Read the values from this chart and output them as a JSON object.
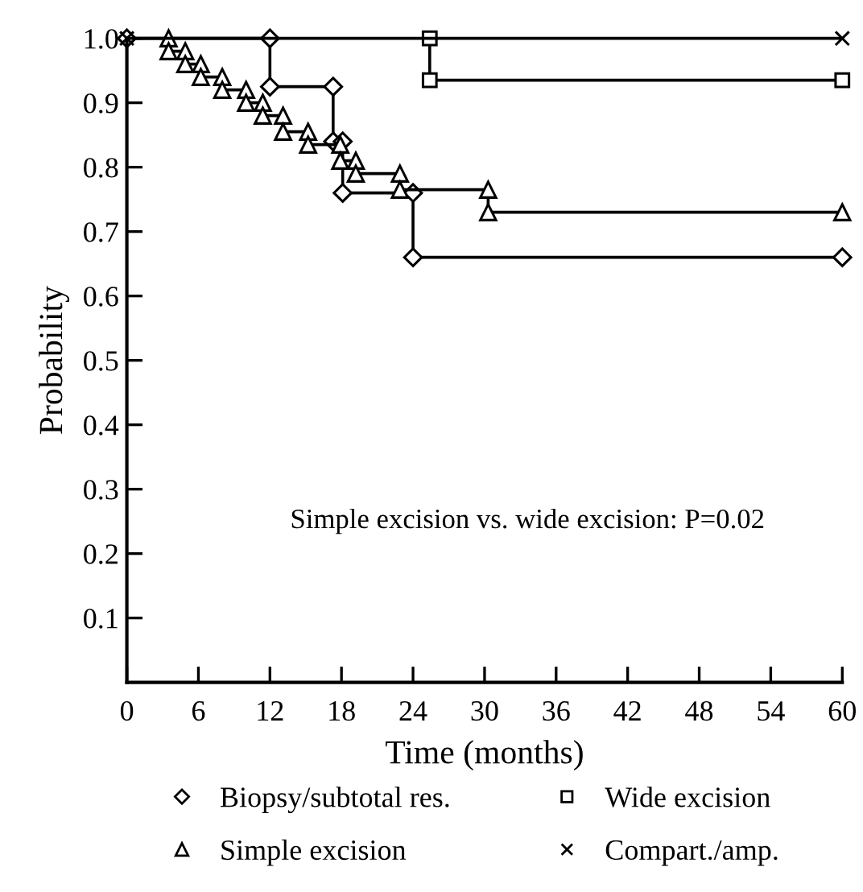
{
  "chart_data": {
    "type": "step",
    "xlabel": "Time (months)",
    "ylabel": "Probability",
    "annotations": [
      "Simple excision vs. wide excision: P=0.02"
    ],
    "xlim": [
      0,
      60
    ],
    "ylim": [
      0,
      1.0
    ],
    "xticks": [
      0,
      6,
      12,
      18,
      24,
      30,
      36,
      42,
      48,
      54,
      60
    ],
    "yticks": [
      {
        "value": 0.1,
        "label": "0.1"
      },
      {
        "value": 0.2,
        "label": "0.2"
      },
      {
        "value": 0.3,
        "label": "0.3"
      },
      {
        "value": 0.4,
        "label": "0.4"
      },
      {
        "value": 0.5,
        "label": "0.5"
      },
      {
        "value": 0.6,
        "label": "0.6"
      },
      {
        "value": 0.7,
        "label": "0.7"
      },
      {
        "value": 0.8,
        "label": "0.8"
      },
      {
        "value": 0.9,
        "label": "0.9"
      },
      {
        "value": 1.0,
        "label": "1.0"
      }
    ],
    "grid": false,
    "legend": "bottom",
    "line_style": "solid",
    "series": [
      {
        "name": "Biopsy/subtotal res.",
        "color": "#000000",
        "marker": "diamond",
        "x": [
          0,
          12,
          12,
          17.3,
          17.3,
          18.1,
          18.1,
          24,
          24,
          60
        ],
        "values": [
          1.0,
          1.0,
          0.925,
          0.925,
          0.84,
          0.84,
          0.76,
          0.76,
          0.66,
          0.66
        ]
      },
      {
        "name": "Simple excision",
        "color": "#000000",
        "marker": "triangle",
        "x": [
          3.5,
          3.5,
          4.9,
          4.9,
          6.2,
          6.2,
          8.0,
          8.0,
          10.0,
          10.0,
          11.4,
          11.4,
          13.1,
          13.1,
          15.2,
          15.2,
          17.9,
          17.9,
          19.2,
          19.2,
          22.9,
          22.9,
          30.3,
          30.3,
          60
        ],
        "values": [
          1.0,
          0.98,
          0.98,
          0.96,
          0.96,
          0.94,
          0.94,
          0.92,
          0.92,
          0.9,
          0.9,
          0.88,
          0.88,
          0.855,
          0.855,
          0.835,
          0.835,
          0.81,
          0.81,
          0.79,
          0.79,
          0.765,
          0.765,
          0.73,
          0.73
        ]
      },
      {
        "name": "Wide excision",
        "color": "#000000",
        "marker": "square",
        "x": [
          25.4,
          25.4,
          60
        ],
        "values": [
          1.0,
          0.935,
          0.935
        ]
      },
      {
        "name": "Compart./amp.",
        "color": "#000000",
        "marker": "cross",
        "x": [
          0,
          60
        ],
        "values": [
          1.0,
          1.0
        ]
      }
    ]
  }
}
